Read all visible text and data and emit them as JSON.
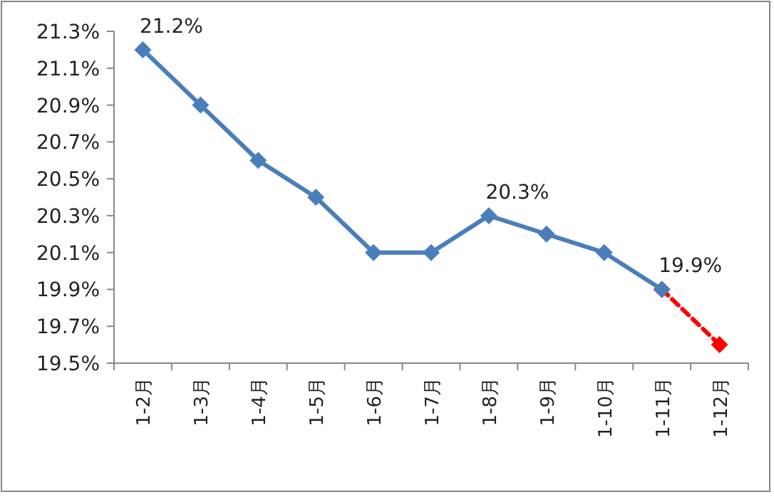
{
  "chart_data": {
    "type": "line",
    "categories": [
      "1-2月",
      "1-3月",
      "1-4月",
      "1-5月",
      "1-6月",
      "1-7月",
      "1-8月",
      "1-9月",
      "1-10月",
      "1-11月",
      "1-12月"
    ],
    "series": [
      {
        "color": "#ff0000",
        "line_style": "dashed",
        "values": [
          null,
          null,
          null,
          null,
          null,
          null,
          null,
          null,
          null,
          19.9,
          19.6
        ]
      },
      {
        "color": "#4a7ebb",
        "line_style": "solid",
        "values": [
          21.2,
          20.9,
          20.6,
          20.4,
          20.1,
          20.1,
          20.3,
          20.2,
          20.1,
          19.9,
          null
        ],
        "value_labels": [
          "21.2%",
          null,
          null,
          null,
          null,
          null,
          "20.3%",
          null,
          null,
          "19.9%",
          null
        ]
      }
    ],
    "ylim": [
      19.5,
      21.3
    ],
    "yticks": [
      {
        "value": 19.5,
        "label": "19.5%"
      },
      {
        "value": 19.7,
        "label": "19.7%"
      },
      {
        "value": 19.9,
        "label": "19.9%"
      },
      {
        "value": 20.1,
        "label": "20.1%"
      },
      {
        "value": 20.3,
        "label": "20.3%"
      },
      {
        "value": 20.5,
        "label": "20.5%"
      },
      {
        "value": 20.7,
        "label": "20.7%"
      },
      {
        "value": 20.9,
        "label": "20.9%"
      },
      {
        "value": 21.1,
        "label": "21.1%"
      },
      {
        "value": 21.3,
        "label": "21.3%"
      }
    ],
    "marker": "diamond",
    "grid": false
  }
}
